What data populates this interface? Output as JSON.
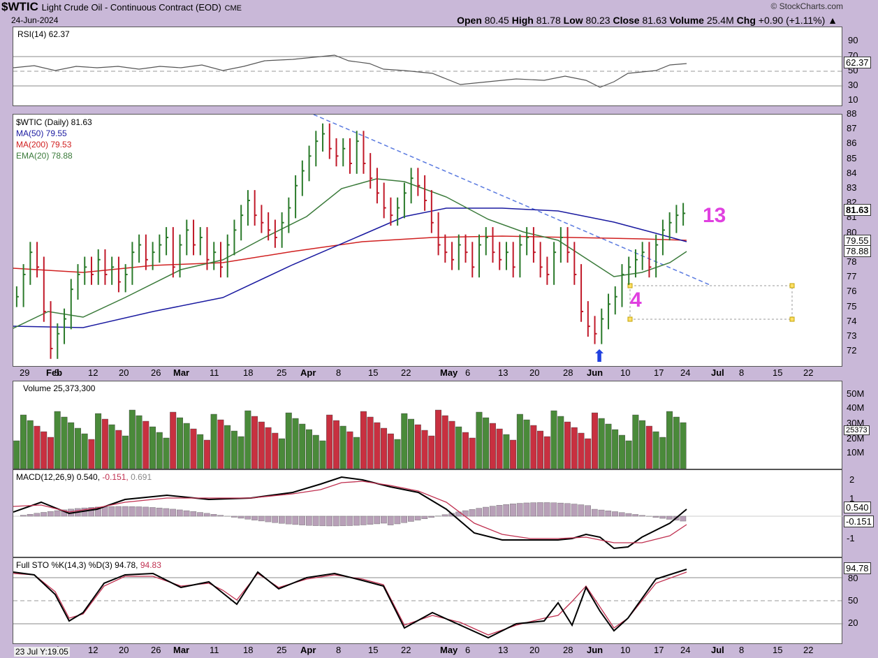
{
  "header": {
    "symbol": "$WTIC",
    "name": "Light Crude Oil - Continuous Contract (EOD)",
    "exchange": "CME",
    "date": "24-Jun-2024",
    "brand": "© StockCharts.com",
    "open_label": "Open",
    "open": "80.45",
    "high_label": "High",
    "high": "81.78",
    "low_label": "Low",
    "low": "80.23",
    "close_label": "Close",
    "close": "81.63",
    "volume_label": "Volume",
    "volume": "25.4M",
    "chg_label": "Chg",
    "chg": "+0.90 (+1.11%)"
  },
  "rsi": {
    "legend": "RSI(14) 62.37",
    "ticks": [
      "90",
      "70",
      "50",
      "30",
      "10"
    ],
    "last": "62.37"
  },
  "price": {
    "legend_title": "$WTIC (Daily) 81.63",
    "ma50": "MA(50) 79.55",
    "ma200": "MA(200) 79.53",
    "ema20": "EMA(20) 78.88",
    "ticks": [
      "88",
      "87",
      "86",
      "85",
      "84",
      "83",
      "82",
      "81",
      "80",
      "79",
      "78",
      "77",
      "76",
      "75",
      "74",
      "73",
      "72"
    ],
    "last": "81.63",
    "ma50_tag": "79.55",
    "ema_tag": "78.88",
    "ann13": "13",
    "ann4": "4",
    "colors": {
      "ma50": "#1a1aa0",
      "ma200": "#d02020",
      "ema20": "#3a7a3a",
      "up": "#2a7a2a",
      "down": "#c01828",
      "trend": "#5a7ae0"
    }
  },
  "xaxis": [
    "29",
    "Feb",
    "5",
    "12",
    "20",
    "26",
    "Mar",
    "11",
    "18",
    "25",
    "Apr",
    "8",
    "15",
    "22",
    "May",
    "6",
    "13",
    "20",
    "28",
    "Jun",
    "10",
    "17",
    "24",
    "Jul",
    "8",
    "15",
    "22"
  ],
  "volume": {
    "legend": "Volume 25,373,300",
    "ticks": [
      "50M",
      "40M",
      "30M",
      "20M",
      "10M"
    ],
    "last": "25373"
  },
  "macd": {
    "legend_a": "MACD(12,26,9) 0.540,",
    "legend_b": "-0.151,",
    "legend_c": "0.691",
    "ticks": [
      "2",
      "1",
      "-1"
    ],
    "last_a": "0.540",
    "last_b": "-0.151"
  },
  "sto": {
    "legend_a": "Full STO %K(14,3) %D(3) 94.78,",
    "legend_b": "94.83",
    "ticks": [
      "80",
      "50",
      "20"
    ],
    "last": "94.78"
  },
  "footer": {
    "crosshair": "23 Jul Y:19.05"
  },
  "chart_data": {
    "type": "ohlc",
    "title": "$WTIC Light Crude Oil - Continuous Contract (EOD)",
    "ylim": [
      71,
      88
    ],
    "series": [
      {
        "name": "MA(50)",
        "last": 79.55
      },
      {
        "name": "MA(200)",
        "last": 79.53
      },
      {
        "name": "EMA(20)",
        "last": 78.88
      }
    ],
    "last_bar": {
      "open": 80.45,
      "high": 81.78,
      "low": 80.23,
      "close": 81.63
    },
    "rsi_last": 62.37,
    "macd": [
      0.54,
      -0.151,
      0.691
    ],
    "sto": [
      94.78,
      94.83
    ]
  }
}
